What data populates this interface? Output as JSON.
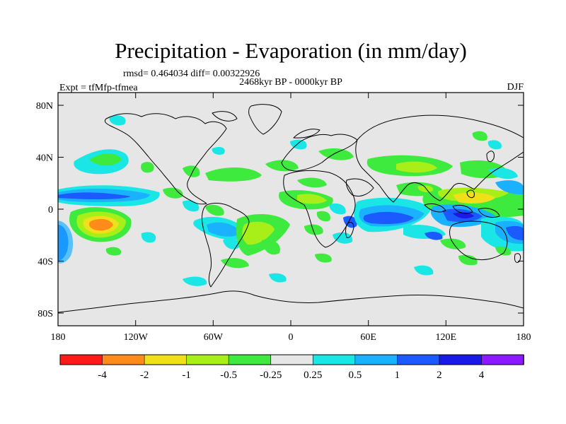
{
  "header": {
    "title": "Precipitation - Evaporation (in mm/day)",
    "stats": "rmsd= 0.464034 diff= 0.00322926",
    "period": "2468kyr BP - 0000kyr BP",
    "experiment": "Expt = tfMfp-tfmea",
    "season": "DJF"
  },
  "axes": {
    "x_ticks": [
      "180",
      "120W",
      "60W",
      "0",
      "60E",
      "120E",
      "180"
    ],
    "y_ticks": [
      "80N",
      "40N",
      "0",
      "40S",
      "80S"
    ]
  },
  "colorbar": {
    "labels": [
      "-4",
      "-2",
      "-1",
      "-0.5",
      "-0.25",
      "0.25",
      "0.5",
      "1",
      "2",
      "4"
    ],
    "colors": [
      "#ff1a1a",
      "#ff8c1a",
      "#f0e01a",
      "#a8ef1a",
      "#3dea3d",
      "#e6e6e6",
      "#1ae6e6",
      "#1ab2ff",
      "#1a5aff",
      "#1a1ae6",
      "#8c1aff"
    ]
  },
  "map": {
    "background_color": "#e6e6e6",
    "coastline_color": "#000000"
  }
}
